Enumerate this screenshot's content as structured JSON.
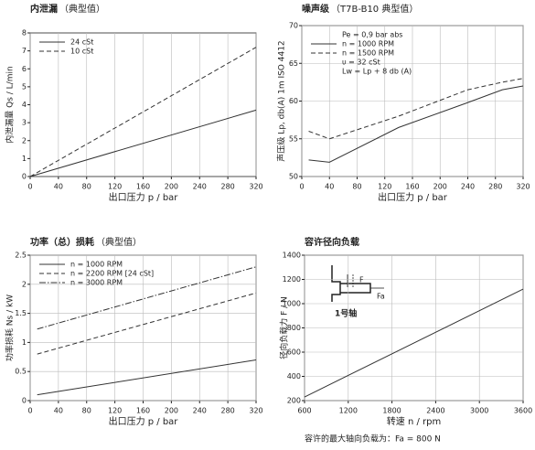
{
  "chart_data": [
    {
      "type": "line",
      "title": "内泄漏",
      "subtitle": "（典型值）",
      "xlabel": "出口压力 p / bar",
      "ylabel": "内泄漏量 Qs / L/min",
      "xlim": [
        0,
        320
      ],
      "ylim": [
        0,
        8
      ],
      "xticks": [
        0,
        40,
        80,
        120,
        160,
        200,
        240,
        280,
        320
      ],
      "yticks": [
        0,
        1,
        2,
        3,
        4,
        5,
        6,
        7,
        8
      ],
      "grid": "x",
      "series": [
        {
          "name": "24 cSt",
          "color": "#333333",
          "style": "solid",
          "x": [
            0,
            320
          ],
          "values": [
            0,
            3.7
          ]
        },
        {
          "name": "10 cSt",
          "color": "#333333",
          "style": "dashed",
          "x": [
            0,
            320
          ],
          "values": [
            0,
            7.2
          ]
        }
      ]
    },
    {
      "type": "line",
      "title": "噪声级",
      "subtitle": "（T7B-B10 典型值）",
      "xlabel": "出口压力 p / bar",
      "ylabel": "声压级 Lp, db(A) 1m ISO 4412",
      "xlim": [
        0,
        320
      ],
      "ylim": [
        50,
        70
      ],
      "xticks": [
        0,
        40,
        80,
        120,
        160,
        200,
        240,
        280,
        320
      ],
      "yticks": [
        50,
        55,
        60,
        65,
        70
      ],
      "grid": "both",
      "legend_notes_before": [
        "Pe = 0,9 bar abs"
      ],
      "legend_notes_after": [
        "υ = 32 cSt",
        "Lw = Lp + 8 db (A)"
      ],
      "series": [
        {
          "name": "n = 1000 RPM",
          "color": "#333333",
          "style": "solid",
          "x": [
            10,
            40,
            140,
            240,
            290,
            320
          ],
          "values": [
            52.2,
            51.9,
            56.5,
            59.8,
            61.5,
            62
          ]
        },
        {
          "name": "n = 1500 RPM",
          "color": "#333333",
          "style": "dashed",
          "x": [
            10,
            40,
            140,
            240,
            290,
            320
          ],
          "values": [
            56,
            55,
            58,
            61.5,
            62.5,
            63
          ]
        }
      ]
    },
    {
      "type": "line",
      "title": "功率（总）损耗",
      "subtitle": "（典型值）",
      "xlabel": "出口压力 p / bar",
      "ylabel": "功率损耗 Ns / kW",
      "xlim": [
        0,
        320
      ],
      "ylim": [
        0,
        2.5
      ],
      "xticks": [
        0,
        40,
        80,
        120,
        160,
        200,
        240,
        280,
        320
      ],
      "yticks": [
        0,
        0.5,
        1,
        1.5,
        2,
        2.5
      ],
      "grid": "both",
      "series": [
        {
          "name": "n = 1000 RPM",
          "color": "#333333",
          "style": "solid",
          "x": [
            10,
            320
          ],
          "values": [
            0.1,
            0.7
          ]
        },
        {
          "name": "n = 2200 RPM [24 cSt]",
          "color": "#333333",
          "style": "dashed",
          "x": [
            10,
            320
          ],
          "values": [
            0.8,
            1.85
          ]
        },
        {
          "name": "n = 3000 RPM",
          "color": "#333333",
          "style": "dashdot",
          "x": [
            10,
            320
          ],
          "values": [
            1.23,
            2.3
          ]
        }
      ]
    },
    {
      "type": "line",
      "title": "容许径向负载",
      "xlabel": "转速 n / rpm",
      "ylabel": "径向负载力 F / N",
      "xlim": [
        600,
        3600
      ],
      "ylim": [
        200,
        1400
      ],
      "xticks": [
        600,
        1200,
        1800,
        2400,
        3000,
        3600
      ],
      "yticks": [
        200,
        400,
        600,
        800,
        1000,
        1200,
        1400
      ],
      "grid": "both",
      "inset_labels": [
        "F",
        "Fa",
        "1号轴"
      ],
      "footnote": "容许的最大轴向负载为：Fa = 800 N",
      "series": [
        {
          "color": "#333333",
          "style": "solid",
          "x": [
            600,
            3600
          ],
          "values": [
            230,
            1120
          ]
        }
      ]
    }
  ]
}
